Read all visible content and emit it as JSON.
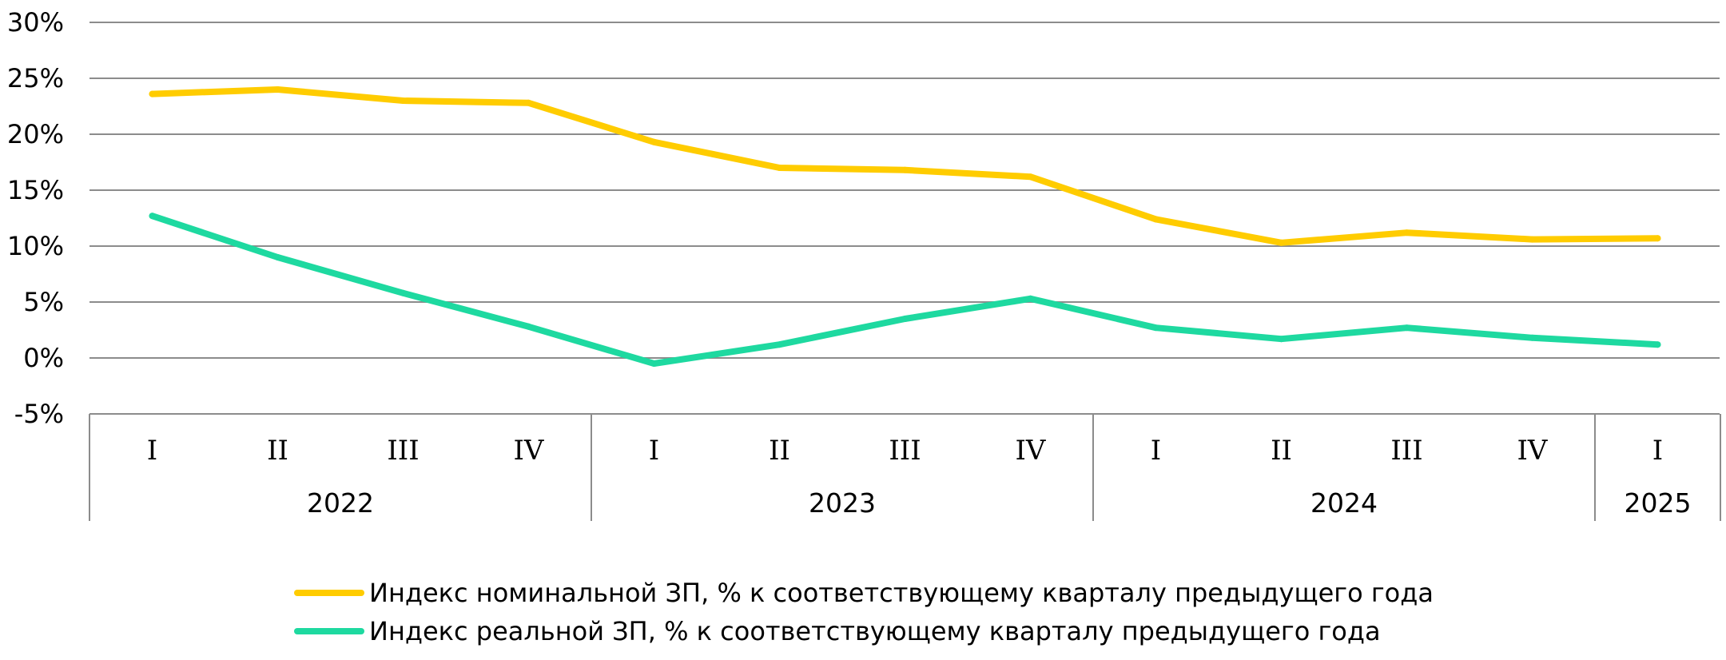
{
  "chart_data": {
    "type": "line",
    "x": [
      {
        "quarter": "I",
        "year": "2022"
      },
      {
        "quarter": "II",
        "year": "2022"
      },
      {
        "quarter": "III",
        "year": "2022"
      },
      {
        "quarter": "IV",
        "year": "2022"
      },
      {
        "quarter": "I",
        "year": "2023"
      },
      {
        "quarter": "II",
        "year": "2023"
      },
      {
        "quarter": "III",
        "year": "2023"
      },
      {
        "quarter": "IV",
        "year": "2023"
      },
      {
        "quarter": "I",
        "year": "2024"
      },
      {
        "quarter": "II",
        "year": "2024"
      },
      {
        "quarter": "III",
        "year": "2024"
      },
      {
        "quarter": "IV",
        "year": "2024"
      },
      {
        "quarter": "I",
        "year": "2025"
      }
    ],
    "years": [
      "2022",
      "2023",
      "2024",
      "2025"
    ],
    "series": [
      {
        "name": "Индекс номинальной ЗП, % к соответствующему кварталу предыдущего года",
        "color": "#FFCC00",
        "values": [
          23.6,
          24.0,
          23.0,
          22.8,
          19.3,
          17.0,
          16.8,
          16.2,
          12.4,
          10.3,
          11.2,
          10.6,
          10.7
        ]
      },
      {
        "name": "Индекс реальной ЗП, % к соответствующему кварталу предыдущего года",
        "color": "#1ED9A0",
        "values": [
          12.7,
          9.0,
          5.8,
          2.8,
          -0.5,
          1.2,
          3.5,
          5.3,
          2.7,
          1.7,
          2.7,
          1.8,
          1.2
        ]
      }
    ],
    "y_ticks": [
      "30%",
      "25%",
      "20%",
      "15%",
      "10%",
      "5%",
      "0%",
      "-5%"
    ],
    "ylim": [
      -5,
      30
    ],
    "y_unit": "%",
    "title": "",
    "xlabel": "",
    "ylabel": "",
    "grid": true,
    "legend_position": "bottom"
  }
}
